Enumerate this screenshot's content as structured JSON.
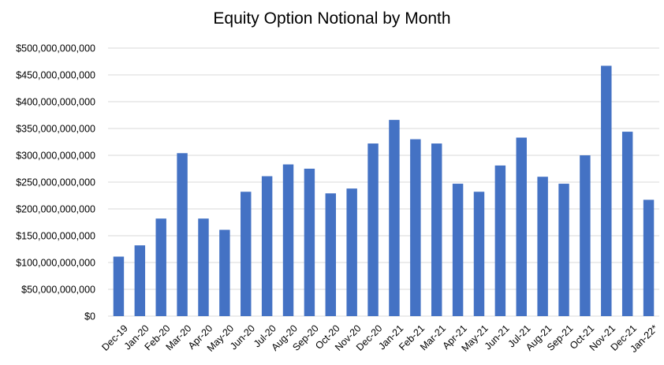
{
  "chart_data": {
    "type": "bar",
    "title": "Equity Option Notional by Month",
    "xlabel": "",
    "ylabel": "",
    "ylim": [
      0,
      500000000000
    ],
    "ytick_values": [
      0,
      50000000000,
      100000000000,
      150000000000,
      200000000000,
      250000000000,
      300000000000,
      350000000000,
      400000000000,
      450000000000,
      500000000000
    ],
    "ytick_labels": [
      "$0",
      "$50,000,000,000",
      "$100,000,000,000",
      "$150,000,000,000",
      "$200,000,000,000",
      "$250,000,000,000",
      "$300,000,000,000",
      "$350,000,000,000",
      "$400,000,000,000",
      "$450,000,000,000",
      "$500,000,000,000"
    ],
    "grid": true,
    "bar_color": "#4472c4",
    "categories": [
      "Dec-19",
      "Jan-20",
      "Feb-20",
      "Mar-20",
      "Apr-20",
      "May-20",
      "Jun-20",
      "Jul-20",
      "Aug-20",
      "Sep-20",
      "Oct-20",
      "Nov-20",
      "Dec-20",
      "Jan-21",
      "Feb-21",
      "Mar-21",
      "Apr-21",
      "May-21",
      "Jun-21",
      "Jul-21",
      "Aug-21",
      "Sep-21",
      "Oct-21",
      "Nov-21",
      "Dec-21",
      "Jan-22*"
    ],
    "values": [
      111000000000,
      132000000000,
      182000000000,
      304000000000,
      182000000000,
      161000000000,
      232000000000,
      261000000000,
      283000000000,
      275000000000,
      229000000000,
      238000000000,
      322000000000,
      366000000000,
      330000000000,
      322000000000,
      247000000000,
      232000000000,
      281000000000,
      333000000000,
      260000000000,
      247000000000,
      300000000000,
      467000000000,
      344000000000,
      217000000000
    ]
  }
}
